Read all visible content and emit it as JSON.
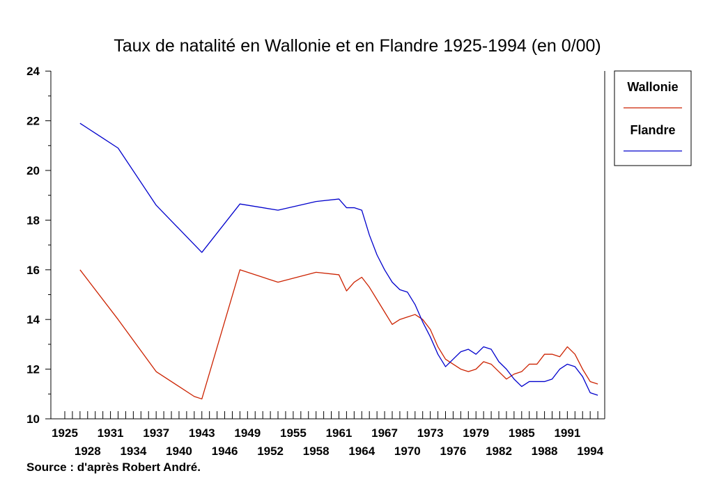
{
  "chart_data": {
    "type": "line",
    "title": "Taux de natalité en Wallonie et en Flandre 1925-1994 (en 0/00)",
    "source": "Source : d'après Robert André.",
    "xlabel": "",
    "ylabel": "",
    "xlim": [
      1925,
      1995
    ],
    "ylim": [
      10,
      24
    ],
    "y_ticks": [
      10,
      12,
      14,
      16,
      18,
      20,
      22,
      24
    ],
    "x_tick_labels_upper": [
      "1925",
      "1931",
      "1937",
      "1943",
      "1949",
      "1955",
      "1961",
      "1967",
      "1973",
      "1979",
      "1985",
      "1991"
    ],
    "x_tick_labels_lower": [
      "1928",
      "1934",
      "1940",
      "1946",
      "1952",
      "1958",
      "1964",
      "1970",
      "1976",
      "1982",
      "1988",
      "1994"
    ],
    "legend_position": "right",
    "grid": false,
    "series": [
      {
        "name": "Wallonie",
        "color": "#cc2200",
        "points": [
          [
            1927,
            16.0
          ],
          [
            1932,
            14.0
          ],
          [
            1937,
            11.9
          ],
          [
            1940,
            11.3
          ],
          [
            1942,
            10.9
          ],
          [
            1943,
            10.8
          ],
          [
            1948,
            16.0
          ],
          [
            1953,
            15.5
          ],
          [
            1958,
            15.9
          ],
          [
            1961,
            15.8
          ],
          [
            1962,
            15.15
          ],
          [
            1963,
            15.5
          ],
          [
            1964,
            15.7
          ],
          [
            1965,
            15.3
          ],
          [
            1966,
            14.8
          ],
          [
            1967,
            14.3
          ],
          [
            1968,
            13.8
          ],
          [
            1969,
            14.0
          ],
          [
            1970,
            14.1
          ],
          [
            1971,
            14.2
          ],
          [
            1972,
            14.0
          ],
          [
            1973,
            13.6
          ],
          [
            1974,
            12.9
          ],
          [
            1975,
            12.4
          ],
          [
            1976,
            12.2
          ],
          [
            1977,
            12.0
          ],
          [
            1978,
            11.9
          ],
          [
            1979,
            12.0
          ],
          [
            1980,
            12.3
          ],
          [
            1981,
            12.2
          ],
          [
            1982,
            11.9
          ],
          [
            1983,
            11.6
          ],
          [
            1984,
            11.8
          ],
          [
            1985,
            11.9
          ],
          [
            1986,
            12.2
          ],
          [
            1987,
            12.2
          ],
          [
            1988,
            12.6
          ],
          [
            1989,
            12.6
          ],
          [
            1990,
            12.5
          ],
          [
            1991,
            12.9
          ],
          [
            1992,
            12.6
          ],
          [
            1993,
            12.0
          ],
          [
            1994,
            11.5
          ],
          [
            1995,
            11.4
          ]
        ]
      },
      {
        "name": "Flandre",
        "color": "#0000cc",
        "points": [
          [
            1927,
            21.9
          ],
          [
            1929,
            21.5
          ],
          [
            1930,
            21.3
          ],
          [
            1932,
            20.9
          ],
          [
            1937,
            18.6
          ],
          [
            1943,
            16.7
          ],
          [
            1948,
            18.65
          ],
          [
            1953,
            18.4
          ],
          [
            1958,
            18.75
          ],
          [
            1961,
            18.85
          ],
          [
            1962,
            18.5
          ],
          [
            1963,
            18.5
          ],
          [
            1964,
            18.4
          ],
          [
            1965,
            17.4
          ],
          [
            1966,
            16.6
          ],
          [
            1967,
            16.0
          ],
          [
            1968,
            15.5
          ],
          [
            1969,
            15.2
          ],
          [
            1970,
            15.1
          ],
          [
            1971,
            14.6
          ],
          [
            1972,
            13.9
          ],
          [
            1973,
            13.3
          ],
          [
            1974,
            12.6
          ],
          [
            1975,
            12.1
          ],
          [
            1976,
            12.4
          ],
          [
            1977,
            12.7
          ],
          [
            1978,
            12.8
          ],
          [
            1979,
            12.6
          ],
          [
            1980,
            12.9
          ],
          [
            1981,
            12.8
          ],
          [
            1982,
            12.3
          ],
          [
            1983,
            12.0
          ],
          [
            1984,
            11.6
          ],
          [
            1985,
            11.3
          ],
          [
            1986,
            11.5
          ],
          [
            1987,
            11.5
          ],
          [
            1988,
            11.5
          ],
          [
            1989,
            11.6
          ],
          [
            1990,
            12.0
          ],
          [
            1991,
            12.2
          ],
          [
            1992,
            12.1
          ],
          [
            1993,
            11.7
          ],
          [
            1994,
            11.05
          ],
          [
            1995,
            10.95
          ]
        ]
      }
    ]
  }
}
